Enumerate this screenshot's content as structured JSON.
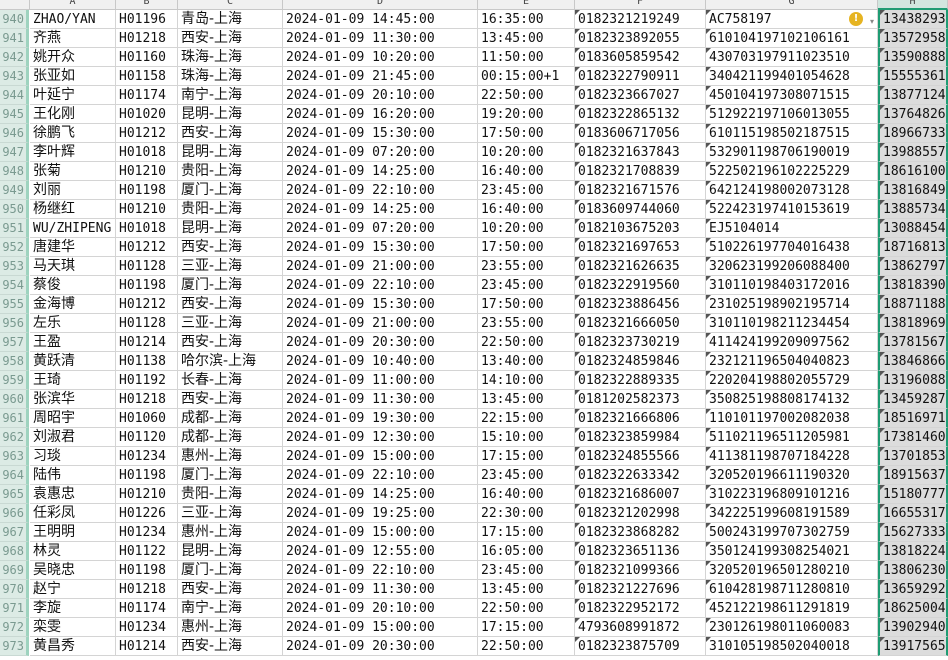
{
  "columns": [
    "A",
    "B",
    "C",
    "D",
    "E",
    "F",
    "G",
    "H"
  ],
  "selected_column": "H",
  "warning_icon": "exclamation-circle-icon",
  "colors": {
    "selection": "#1f9c73",
    "warning": "#e6b422"
  },
  "rows": [
    [
      "940",
      "ZHAO/YAN",
      "H01196",
      "青岛-上海",
      "2024-01-09 14:45:00",
      "16:35:00",
      "0182321219249",
      "AC758197",
      "13438293"
    ],
    [
      "941",
      "齐燕",
      "H01218",
      "西安-上海",
      "2024-01-09 11:30:00",
      "13:45:00",
      "0182323892055",
      "610104197102106161",
      "13572958"
    ],
    [
      "942",
      "姚开众",
      "H01160",
      "珠海-上海",
      "2024-01-09 10:20:00",
      "11:50:00",
      "0183605859542",
      "430703197911023510",
      "13590888"
    ],
    [
      "943",
      "张亚如",
      "H01158",
      "珠海-上海",
      "2024-01-09 21:45:00",
      "00:15:00+1",
      "0182322790911",
      "340421199401054628",
      "15555361"
    ],
    [
      "944",
      "叶延宁",
      "H01174",
      "南宁-上海",
      "2024-01-09 20:10:00",
      "22:50:00",
      "0182323667027",
      "450104197308071515",
      "13877124"
    ],
    [
      "945",
      "王化刚",
      "H01020",
      "昆明-上海",
      "2024-01-09 16:20:00",
      "19:20:00",
      "0182322865132",
      "512922197106013055",
      "13764826"
    ],
    [
      "946",
      "徐鹏飞",
      "H01212",
      "西安-上海",
      "2024-01-09 15:30:00",
      "17:50:00",
      "0183606717056",
      "610115198502187515",
      "18966733"
    ],
    [
      "947",
      "李叶辉",
      "H01018",
      "昆明-上海",
      "2024-01-09 07:20:00",
      "10:20:00",
      "0182321637843",
      "532901198706190019",
      "13988557"
    ],
    [
      "948",
      "张菊",
      "H01210",
      "贵阳-上海",
      "2024-01-09 14:25:00",
      "16:40:00",
      "0182321708839",
      "522502196102225229",
      "18616100"
    ],
    [
      "949",
      "刘丽",
      "H01198",
      "厦门-上海",
      "2024-01-09 22:10:00",
      "23:45:00",
      "0182321671576",
      "642124198002073128",
      "13816849"
    ],
    [
      "950",
      "杨继红",
      "H01210",
      "贵阳-上海",
      "2024-01-09 14:25:00",
      "16:40:00",
      "0183609744060",
      "522423197410153619",
      "13885734"
    ],
    [
      "951",
      "WU/ZHIPENG",
      "H01018",
      "昆明-上海",
      "2024-01-09 07:20:00",
      "10:20:00",
      "0182103675203",
      "EJ5104014",
      "13088454"
    ],
    [
      "952",
      "唐建华",
      "H01212",
      "西安-上海",
      "2024-01-09 15:30:00",
      "17:50:00",
      "0182321697653",
      "510226197704016438",
      "18716813"
    ],
    [
      "953",
      "马天琪",
      "H01128",
      "三亚-上海",
      "2024-01-09 21:00:00",
      "23:55:00",
      "0182321626635",
      "320623199206088400",
      "13862797"
    ],
    [
      "954",
      "蔡俊",
      "H01198",
      "厦门-上海",
      "2024-01-09 22:10:00",
      "23:45:00",
      "0182322919560",
      "310110198403172016",
      "13818390"
    ],
    [
      "955",
      "金海博",
      "H01212",
      "西安-上海",
      "2024-01-09 15:30:00",
      "17:50:00",
      "0182323886456",
      "231025198902195714",
      "18871188"
    ],
    [
      "956",
      "左乐",
      "H01128",
      "三亚-上海",
      "2024-01-09 21:00:00",
      "23:55:00",
      "0182321666050",
      "310110198211234454",
      "13818969"
    ],
    [
      "957",
      "王盈",
      "H01214",
      "西安-上海",
      "2024-01-09 20:30:00",
      "22:50:00",
      "0182323730219",
      "411424199209097562",
      "13781567"
    ],
    [
      "958",
      "黄跃清",
      "H01138",
      "哈尔滨-上海",
      "2024-01-09 10:40:00",
      "13:40:00",
      "0182324859846",
      "232121196504040823",
      "13846866"
    ],
    [
      "959",
      "王琦",
      "H01192",
      "长春-上海",
      "2024-01-09 11:00:00",
      "14:10:00",
      "0182322889335",
      "220204198802055729",
      "13196088"
    ],
    [
      "960",
      "张滨华",
      "H01218",
      "西安-上海",
      "2024-01-09 11:30:00",
      "13:45:00",
      "0181202582373",
      "350825198808174132",
      "13459287"
    ],
    [
      "961",
      "周昭宇",
      "H01060",
      "成都-上海",
      "2024-01-09 19:30:00",
      "22:15:00",
      "0182321666806",
      "110101197002082038",
      "18516971"
    ],
    [
      "962",
      "刘淑君",
      "H01120",
      "成都-上海",
      "2024-01-09 12:30:00",
      "15:10:00",
      "0182323859984",
      "511021196511205981",
      "17381460"
    ],
    [
      "963",
      "习琰",
      "H01234",
      "惠州-上海",
      "2024-01-09 15:00:00",
      "17:15:00",
      "0182324855566",
      "411381198707184228",
      "13701853"
    ],
    [
      "964",
      "陆伟",
      "H01198",
      "厦门-上海",
      "2024-01-09 22:10:00",
      "23:45:00",
      "0182322633342",
      "320520196611190320",
      "18915637"
    ],
    [
      "965",
      "袁惠忠",
      "H01210",
      "贵阳-上海",
      "2024-01-09 14:25:00",
      "16:40:00",
      "0182321686007",
      "310223196809101216",
      "15180777"
    ],
    [
      "966",
      "任彩凤",
      "H01226",
      "三亚-上海",
      "2024-01-09 19:25:00",
      "22:30:00",
      "0182321202998",
      "342225199608191589",
      "16655317"
    ],
    [
      "967",
      "王明明",
      "H01234",
      "惠州-上海",
      "2024-01-09 15:00:00",
      "17:15:00",
      "0182323868282",
      "500243199707302759",
      "15627333"
    ],
    [
      "968",
      "林灵",
      "H01122",
      "昆明-上海",
      "2024-01-09 12:55:00",
      "16:05:00",
      "0182323651136",
      "350124199308254021",
      "13818224"
    ],
    [
      "969",
      "吴晓忠",
      "H01198",
      "厦门-上海",
      "2024-01-09 22:10:00",
      "23:45:00",
      "0182321099366",
      "320520196501280210",
      "13806230"
    ],
    [
      "970",
      "赵宁",
      "H01218",
      "西安-上海",
      "2024-01-09 11:30:00",
      "13:45:00",
      "0182321227696",
      "610428198711280810",
      "13659292"
    ],
    [
      "971",
      "李旋",
      "H01174",
      "南宁-上海",
      "2024-01-09 20:10:00",
      "22:50:00",
      "0182322952172",
      "452122198611291819",
      "18625004"
    ],
    [
      "972",
      "栾雯",
      "H01234",
      "惠州-上海",
      "2024-01-09 15:00:00",
      "17:15:00",
      "4793608991872",
      "230126198011060083",
      "13902940"
    ],
    [
      "973",
      "黄昌秀",
      "H01214",
      "西安-上海",
      "2024-01-09 20:30:00",
      "22:50:00",
      "0182323875709",
      "310105198502040018",
      "13917565"
    ]
  ]
}
